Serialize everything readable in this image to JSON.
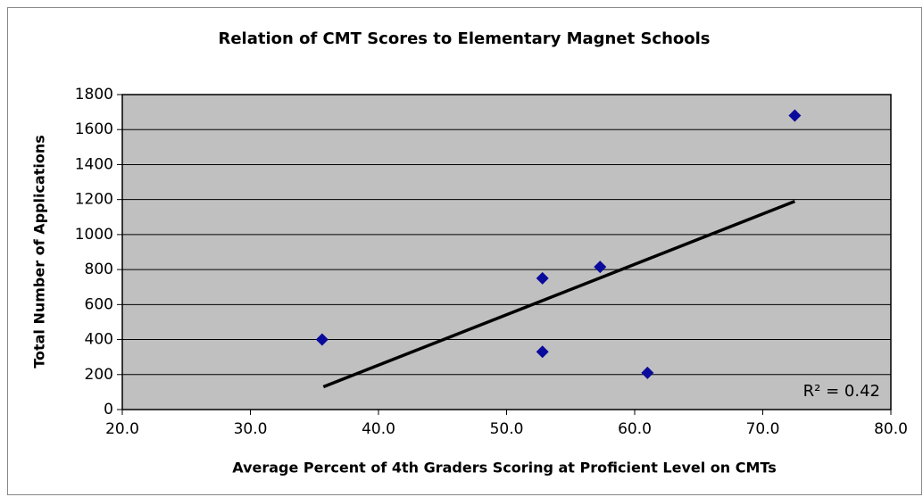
{
  "chart_data": {
    "type": "scatter",
    "title": "Relation of CMT Scores to Elementary Magnet Schools",
    "x_label": "Average Percent of 4th Graders Scoring at Proficient Level on CMTs",
    "y_label": "Total Number of Applications",
    "x": [
      35.6,
      52.8,
      52.8,
      57.3,
      61.0,
      72.5
    ],
    "values": [
      400,
      750,
      330,
      815,
      210,
      1680
    ],
    "color": "#0a0a9c",
    "trendline": {
      "x": [
        35.7,
        72.5
      ],
      "values": [
        130,
        1190
      ],
      "color": "#000000"
    },
    "annotation": "R² = 0.42",
    "xlim": [
      20,
      80
    ],
    "xticks": [
      {
        "value": 20,
        "label": "20.0"
      },
      {
        "value": 30,
        "label": "30.0"
      },
      {
        "value": 40,
        "label": "40.0"
      },
      {
        "value": 50,
        "label": "50.0"
      },
      {
        "value": 60,
        "label": "60.0"
      },
      {
        "value": 70,
        "label": "70.0"
      },
      {
        "value": 80,
        "label": "80.0"
      }
    ],
    "ylim": [
      0,
      1800
    ],
    "yticks": [
      0,
      200,
      400,
      600,
      800,
      1000,
      1200,
      1400,
      1600,
      1800
    ],
    "grid": true,
    "plot_background": "#c0c0c0"
  }
}
